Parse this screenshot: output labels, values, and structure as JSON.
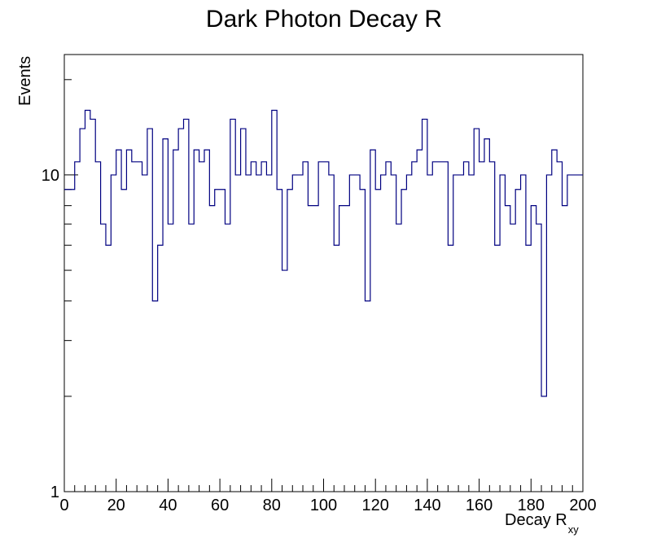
{
  "chart_data": {
    "type": "histogram",
    "title": "Dark Photon Decay R",
    "xlabel": "Decay R",
    "xlabel_subscript": "xy",
    "ylabel": "Events",
    "xlim": [
      0,
      200
    ],
    "ylim": [
      1,
      24
    ],
    "y_scale": "log",
    "grid": false,
    "legend": "none",
    "line_color": "#000080",
    "bin_width": 2,
    "x_ticks": [
      "0",
      "20",
      "40",
      "60",
      "80",
      "100",
      "120",
      "140",
      "160",
      "180",
      "200"
    ],
    "x_tick_values": [
      0,
      20,
      40,
      60,
      80,
      100,
      120,
      140,
      160,
      180,
      200
    ],
    "y_ticks": [
      "1",
      "10"
    ],
    "y_tick_values": [
      1,
      10
    ],
    "bin_edges": [
      0,
      2,
      4,
      6,
      8,
      10,
      12,
      14,
      16,
      18,
      20,
      22,
      24,
      26,
      28,
      30,
      32,
      34,
      36,
      38,
      40,
      42,
      44,
      46,
      48,
      50,
      52,
      54,
      56,
      58,
      60,
      62,
      64,
      66,
      68,
      70,
      72,
      74,
      76,
      78,
      80,
      82,
      84,
      86,
      88,
      90,
      92,
      94,
      96,
      98,
      100,
      102,
      104,
      106,
      108,
      110,
      112,
      114,
      116,
      118,
      120,
      122,
      124,
      126,
      128,
      130,
      132,
      134,
      136,
      138,
      140,
      142,
      144,
      146,
      148,
      150,
      152,
      154,
      156,
      158,
      160,
      162,
      164,
      166,
      168,
      170,
      172,
      174,
      176,
      178,
      180,
      182,
      184,
      186,
      188,
      190,
      192,
      194,
      196,
      198,
      200
    ],
    "values": [
      9,
      9,
      11,
      14,
      16,
      15,
      11,
      7,
      6,
      10,
      12,
      9,
      12,
      11,
      11,
      10,
      14,
      4,
      6,
      13,
      7,
      12,
      14,
      15,
      7,
      12,
      11,
      12,
      8,
      9,
      9,
      7,
      15,
      10,
      14,
      10,
      11,
      10,
      11,
      10,
      16,
      9,
      5,
      9,
      10,
      10,
      11,
      8,
      8,
      11,
      11,
      10,
      6,
      8,
      8,
      10,
      10,
      9,
      4,
      12,
      9,
      10,
      11,
      10,
      7,
      9,
      10,
      11,
      12,
      15,
      10,
      11,
      11,
      11,
      6,
      10,
      10,
      11,
      10,
      14,
      11,
      13,
      11,
      6,
      10,
      8,
      7,
      9,
      10,
      6,
      8,
      7,
      2,
      10,
      12,
      11,
      8,
      10,
      10,
      10
    ]
  }
}
